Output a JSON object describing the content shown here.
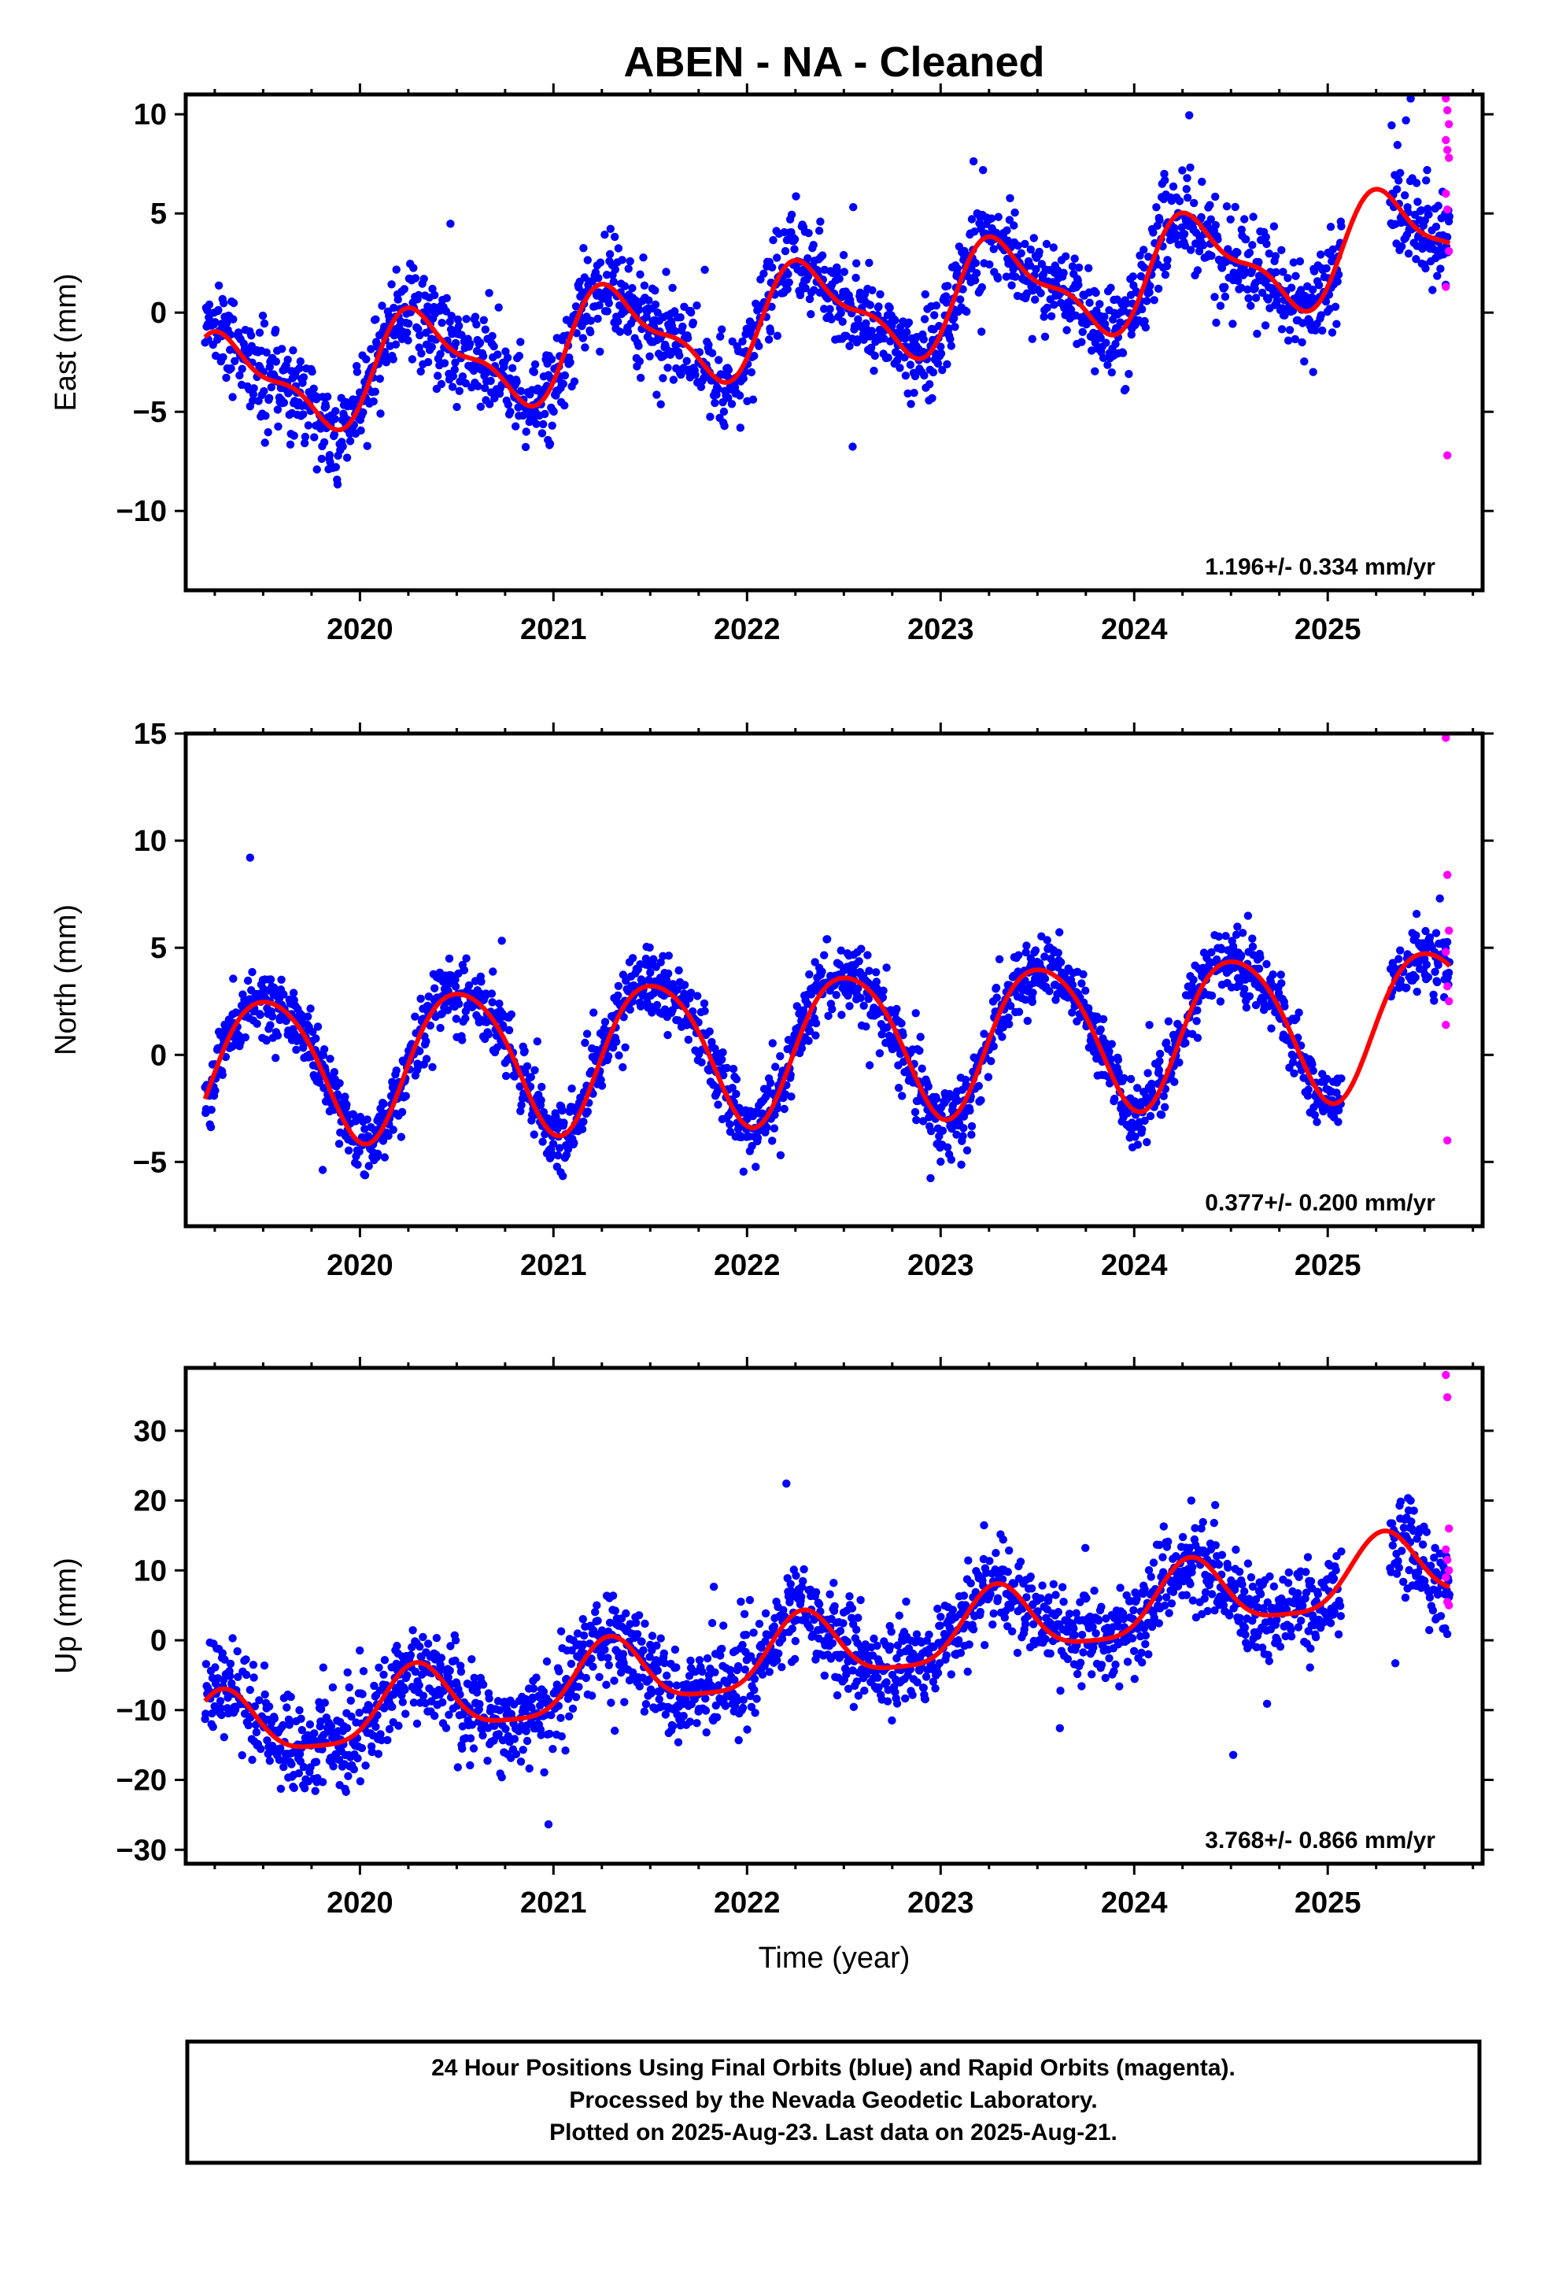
{
  "title": "ABEN  - NA - Cleaned",
  "x_axis_label": "Time (year)",
  "footer": {
    "line1": "24 Hour Positions Using Final Orbits (blue) and Rapid Orbits (magenta).",
    "line2": "Processed by the Nevada Geodetic Laboratory.",
    "line3": "Plotted on 2025-Aug-23. Last data on 2025-Aug-21."
  },
  "colors": {
    "final_orbits": "#0000ff",
    "rapid_orbits": "#ff00ff",
    "model": "#ff0000",
    "frame": "#000000"
  },
  "chart_data": [
    {
      "type": "scatter",
      "ylabel": "East (mm)",
      "rate_label": "1.196+/- 0.334 mm/yr",
      "xlim": [
        2019.1,
        2025.8
      ],
      "ylim": [
        -14,
        11
      ],
      "xticks": [
        2020,
        2021,
        2022,
        2023,
        2024,
        2025
      ],
      "yticks": [
        -10,
        -5,
        0,
        5,
        10
      ],
      "ytick_labels": [
        "−10",
        "−5",
        "0",
        "5",
        "10"
      ],
      "x_start": 2019.2,
      "x_end": 2025.63,
      "gaps": [
        [
          2025.07,
          2025.32
        ]
      ],
      "model": {
        "offset": -3.9,
        "rate": 1.196,
        "amp1": 2.4,
        "phase1": 0.82,
        "amp2": 0.9,
        "phase2": 1.6
      },
      "noise": 1.6,
      "rapid": [
        10.8,
        10.2,
        9.5,
        8.7,
        8.2,
        7.8,
        6.0,
        5.2,
        3.1,
        1.3,
        -7.2
      ]
    },
    {
      "type": "scatter",
      "ylabel": "North (mm)",
      "rate_label": "0.377+/- 0.200 mm/yr",
      "xlim": [
        2019.1,
        2025.8
      ],
      "ylim": [
        -8,
        15
      ],
      "xticks": [
        2020,
        2021,
        2022,
        2023,
        2024,
        2025
      ],
      "yticks": [
        -5,
        0,
        5,
        10,
        15
      ],
      "ytick_labels": [
        "−5",
        "0",
        "5",
        "10",
        "15"
      ],
      "x_start": 2019.2,
      "x_end": 2025.63,
      "gaps": [
        [
          2025.07,
          2025.32
        ]
      ],
      "model": {
        "offset": -0.7,
        "rate": 0.377,
        "amp1": 3.4,
        "phase1": -0.45,
        "amp2": 0.4,
        "phase2": 0.3
      },
      "noise": 1.1,
      "rapid": [
        14.8,
        8.4,
        5.8,
        4.8,
        3.2,
        2.5,
        1.4,
        -4.0
      ]
    },
    {
      "type": "scatter",
      "ylabel": "Up (mm)",
      "rate_label": "3.768+/- 0.866 mm/yr",
      "xlim": [
        2019.1,
        2025.8
      ],
      "ylim": [
        -32,
        39
      ],
      "xticks": [
        2020,
        2021,
        2022,
        2023,
        2024,
        2025
      ],
      "yticks": [
        -30,
        -20,
        -10,
        0,
        10,
        20,
        30
      ],
      "ytick_labels": [
        "−30",
        "−20",
        "−10",
        "0",
        "10",
        "20",
        "30"
      ],
      "x_start": 2019.2,
      "x_end": 2025.63,
      "gaps": [
        [
          2025.07,
          2025.32
        ]
      ],
      "model": {
        "offset": -13.5,
        "rate": 3.768,
        "amp1": 5.0,
        "phase1": 1.0,
        "amp2": 1.2,
        "phase2": 0.5
      },
      "noise": 4.2,
      "rapid": [
        38.0,
        34.8,
        16.0,
        13.0,
        11.5,
        10.0,
        9.0,
        5.5,
        5.0
      ]
    }
  ]
}
